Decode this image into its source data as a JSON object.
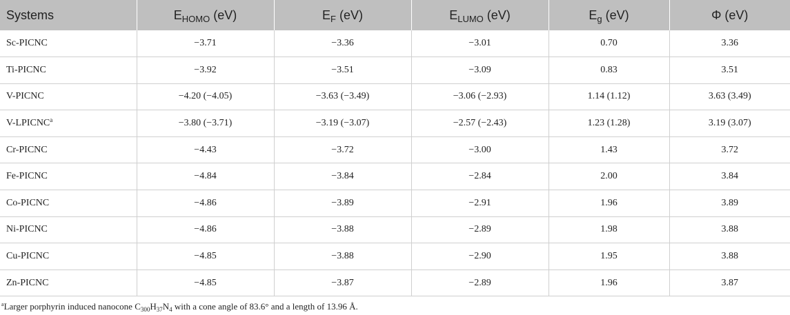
{
  "header": {
    "systems": "Systems",
    "e_homo": {
      "main": "E",
      "sub": "HOMO",
      "unit": " (eV)"
    },
    "e_f": {
      "main": "E",
      "sub": "F",
      "unit": " (eV)"
    },
    "e_lumo": {
      "main": "E",
      "sub": "LUMO",
      "unit": " (eV)"
    },
    "e_g": {
      "main": "E",
      "sub": "g",
      "unit": " (eV)"
    },
    "phi": "Φ (eV)"
  },
  "rows": [
    {
      "system": "Sc-PICNC",
      "sup": "",
      "e_homo": "−3.71",
      "e_f": "−3.36",
      "e_lumo": "−3.01",
      "e_g": "0.70",
      "phi": "3.36"
    },
    {
      "system": "Ti-PICNC",
      "sup": "",
      "e_homo": "−3.92",
      "e_f": "−3.51",
      "e_lumo": "−3.09",
      "e_g": "0.83",
      "phi": "3.51"
    },
    {
      "system": "V-PICNC",
      "sup": "",
      "e_homo": "−4.20 (−4.05)",
      "e_f": "−3.63 (−3.49)",
      "e_lumo": "−3.06 (−2.93)",
      "e_g": "1.14 (1.12)",
      "phi": "3.63 (3.49)"
    },
    {
      "system": "V-LPICNC",
      "sup": "a",
      "e_homo": "−3.80 (−3.71)",
      "e_f": "−3.19 (−3.07)",
      "e_lumo": "−2.57 (−2.43)",
      "e_g": "1.23 (1.28)",
      "phi": "3.19 (3.07)"
    },
    {
      "system": "Cr-PICNC",
      "sup": "",
      "e_homo": "−4.43",
      "e_f": "−3.72",
      "e_lumo": "−3.00",
      "e_g": "1.43",
      "phi": "3.72"
    },
    {
      "system": "Fe-PICNC",
      "sup": "",
      "e_homo": "−4.84",
      "e_f": "−3.84",
      "e_lumo": "−2.84",
      "e_g": "2.00",
      "phi": "3.84"
    },
    {
      "system": "Co-PICNC",
      "sup": "",
      "e_homo": "−4.86",
      "e_f": "−3.89",
      "e_lumo": "−2.91",
      "e_g": "1.96",
      "phi": "3.89"
    },
    {
      "system": "Ni-PICNC",
      "sup": "",
      "e_homo": "−4.86",
      "e_f": "−3.88",
      "e_lumo": "−2.89",
      "e_g": "1.98",
      "phi": "3.88"
    },
    {
      "system": "Cu-PICNC",
      "sup": "",
      "e_homo": "−4.85",
      "e_f": "−3.88",
      "e_lumo": "−2.90",
      "e_g": "1.95",
      "phi": "3.88"
    },
    {
      "system": "Zn-PICNC",
      "sup": "",
      "e_homo": "−4.85",
      "e_f": "−3.87",
      "e_lumo": "−2.89",
      "e_g": "1.96",
      "phi": "3.87"
    }
  ],
  "footnote": {
    "marker": "a",
    "text_before": "Larger porphyrin induced nanocone C",
    "sub1": "300",
    "mid1": "H",
    "sub2": "37",
    "mid2": "N",
    "sub3": "4",
    "text_after": " with a cone angle of 83.6° and a length of 13.96 Å."
  },
  "colors": {
    "header_bg": "#bfbfbf",
    "text": "#222222",
    "grid": "#cfcfcf"
  }
}
